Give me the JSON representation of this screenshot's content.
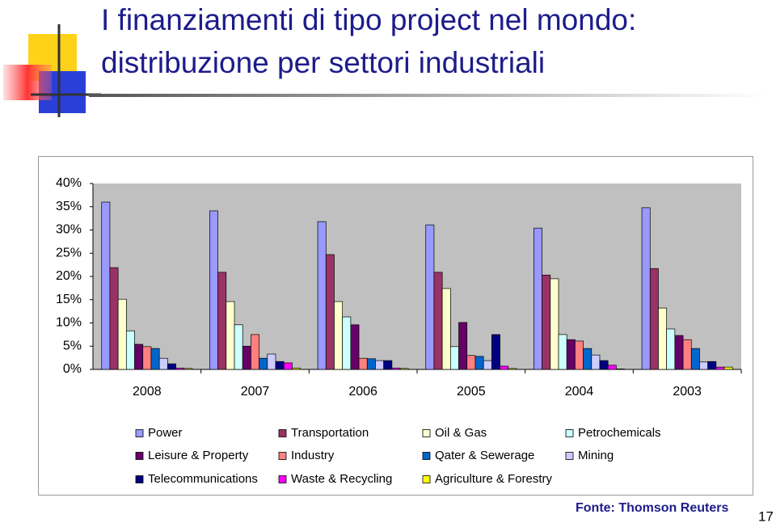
{
  "slide": {
    "title": [
      "I finanziamenti di tipo project nel mondo:",
      "distribuzione per settori industriali"
    ],
    "source": "Fonte: Thomson Reuters",
    "page": 17
  },
  "chart_data": {
    "type": "bar",
    "categories": [
      "2008",
      "2007",
      "2006",
      "2005",
      "2004",
      "2003"
    ],
    "ylim": [
      0,
      40
    ],
    "yticks": [
      {
        "value": 0,
        "label": "0%"
      },
      {
        "value": 5,
        "label": "5%"
      },
      {
        "value": 10,
        "label": "10%"
      },
      {
        "value": 15,
        "label": "15%"
      },
      {
        "value": 20,
        "label": "20%"
      },
      {
        "value": 25,
        "label": "25%"
      },
      {
        "value": 30,
        "label": "30%"
      },
      {
        "value": 35,
        "label": "35%"
      },
      {
        "value": 40,
        "label": "40%"
      }
    ],
    "grid": false,
    "series": [
      {
        "name": "Power",
        "color": "#9999ff",
        "values": [
          36,
          34.1,
          31.8,
          31.1,
          30.4,
          34.8
        ]
      },
      {
        "name": "Transportation",
        "color": "#993366",
        "values": [
          21.9,
          20.9,
          24.7,
          20.9,
          20.3,
          21.7
        ]
      },
      {
        "name": "Oil & Gas",
        "color": "#ffffcc",
        "values": [
          15.1,
          14.6,
          14.6,
          17.4,
          19.5,
          13.2
        ]
      },
      {
        "name": "Petrochemicals",
        "color": "#ccffff",
        "values": [
          8.3,
          9.6,
          11.3,
          4.9,
          7.5,
          8.7
        ]
      },
      {
        "name": "Leisure & Property",
        "color": "#660066",
        "values": [
          5.4,
          5.0,
          9.6,
          10.1,
          6.4,
          7.3
        ]
      },
      {
        "name": "Industry",
        "color": "#ff8080",
        "values": [
          4.9,
          7.5,
          2.4,
          3.0,
          6.1,
          6.4
        ]
      },
      {
        "name": "Qater & Sewerage",
        "color": "#0066cc",
        "values": [
          4.5,
          2.4,
          2.3,
          2.8,
          4.5,
          4.5
        ]
      },
      {
        "name": "Mining",
        "color": "#ccccff",
        "values": [
          2.4,
          3.3,
          1.9,
          1.9,
          3.1,
          1.6
        ]
      },
      {
        "name": "Telecommunications",
        "color": "#000080",
        "values": [
          1.2,
          1.7,
          1.9,
          7.5,
          1.9,
          1.7
        ]
      },
      {
        "name": "Waste & Recycling",
        "color": "#ff00ff",
        "values": [
          0.3,
          1.4,
          0.3,
          0.7,
          0.9,
          0.5
        ]
      },
      {
        "name": "Agriculture & Forestry",
        "color": "#ffff00",
        "values": [
          0.2,
          0.3,
          0.2,
          0.2,
          0.1,
          0.5
        ]
      }
    ]
  }
}
